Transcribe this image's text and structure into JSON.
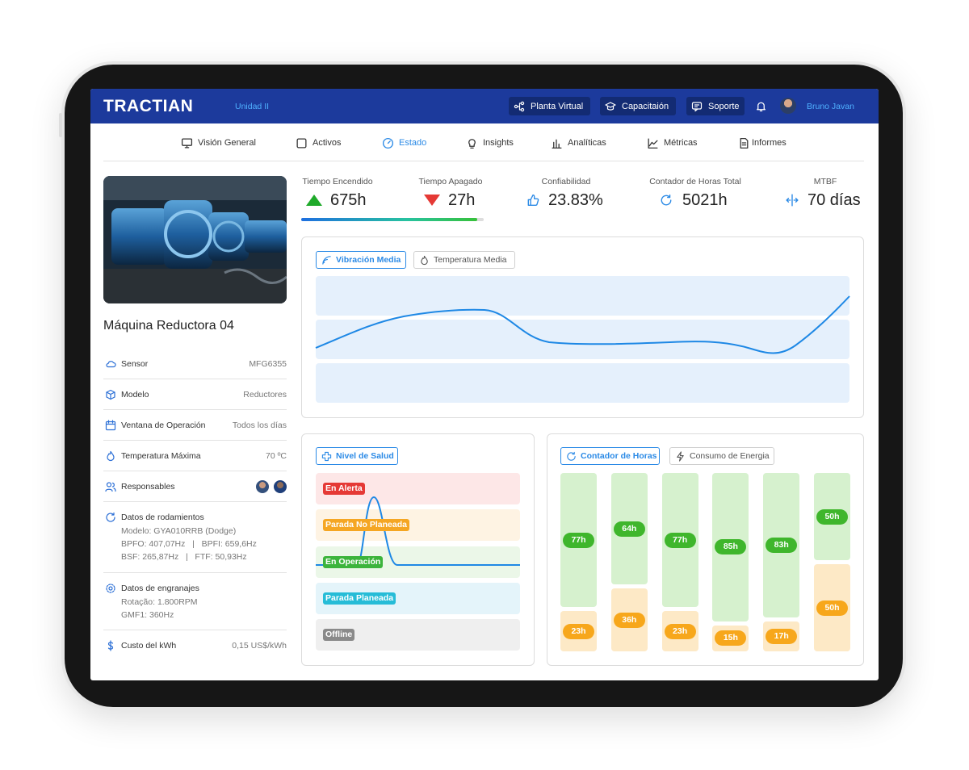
{
  "header": {
    "brand": "TRACTIAN",
    "unit": "Unidad II",
    "buttons": [
      "Planta Virtual",
      "Capacitaión",
      "Soporte"
    ],
    "user": "Bruno Javan"
  },
  "nav": [
    "Visión General",
    "Activos",
    "Estado",
    "Insights",
    "Analíticas",
    "Métricas",
    "Informes"
  ],
  "asset": {
    "title": "Máquina Reductora 04",
    "rows": [
      {
        "label": "Sensor",
        "value": "MFG6355"
      },
      {
        "label": "Modelo",
        "value": "Reductores"
      },
      {
        "label": "Ventana de Operación",
        "value": "Todos los días"
      },
      {
        "label": "Temperatura Máxima",
        "value": "70 ºC"
      },
      {
        "label": "Responsables"
      }
    ],
    "groups": [
      {
        "label": "Datos de rodamientos",
        "lines": [
          "Modelo: GYA010RRB (Dodge)",
          "BPFO: 407,07Hz   |   BPFI: 659,6Hz",
          "BSF: 265,87Hz   |   FTF: 50,93Hz"
        ]
      },
      {
        "label": "Datos de engranajes",
        "lines": [
          "Rotação: 1.800RPM",
          "GMF1: 360Hz"
        ]
      }
    ],
    "cost": {
      "label": "Custo del kWh",
      "value": "0,15 US$/kWh"
    }
  },
  "kpis": [
    {
      "label": "Tiempo Encendido",
      "value": "675h"
    },
    {
      "label": "Tiempo Apagado",
      "value": "27h"
    },
    {
      "label": "Confiabilidad",
      "value": "23.83%"
    },
    {
      "label": "Contador de Horas Total",
      "value": "5021h"
    },
    {
      "label": "MTBF",
      "value": "70 días"
    }
  ],
  "vibration": {
    "tabs": [
      "Vibración Media",
      "Temperatura Media"
    ]
  },
  "health": {
    "tab": "Nivel de Salud",
    "levels": [
      {
        "label": "En Alerta",
        "color": "#e53935",
        "bg": "#fde7e7"
      },
      {
        "label": "Parada No Planeada",
        "color": "#f5a623",
        "bg": "#fef3e3"
      },
      {
        "label": "En Operación",
        "color": "#3cb43c",
        "bg": "#ebf7e8"
      },
      {
        "label": "Parada Planeada",
        "color": "#26bcd7",
        "bg": "#e4f4fa"
      },
      {
        "label": "Offline",
        "color": "#8a8a8a",
        "bg": "#efefef"
      }
    ]
  },
  "chart_data": {
    "type": "bar",
    "stacked": true,
    "tabs": [
      "Contador de Horas",
      "Consumo de Energia"
    ],
    "series": [
      {
        "color": "#d6f1ce",
        "label_color": "#3fb62c",
        "values": [
          77,
          64,
          77,
          85,
          83,
          50
        ],
        "value_labels": [
          "77h",
          "64h",
          "77h",
          "85h",
          "83h",
          "50h"
        ]
      },
      {
        "color": "#fde9c6",
        "label_color": "#f7a71b",
        "values": [
          23,
          36,
          23,
          15,
          17,
          50
        ],
        "value_labels": [
          "23h",
          "36h",
          "23h",
          "15h",
          "17h",
          "50h"
        ]
      }
    ]
  }
}
